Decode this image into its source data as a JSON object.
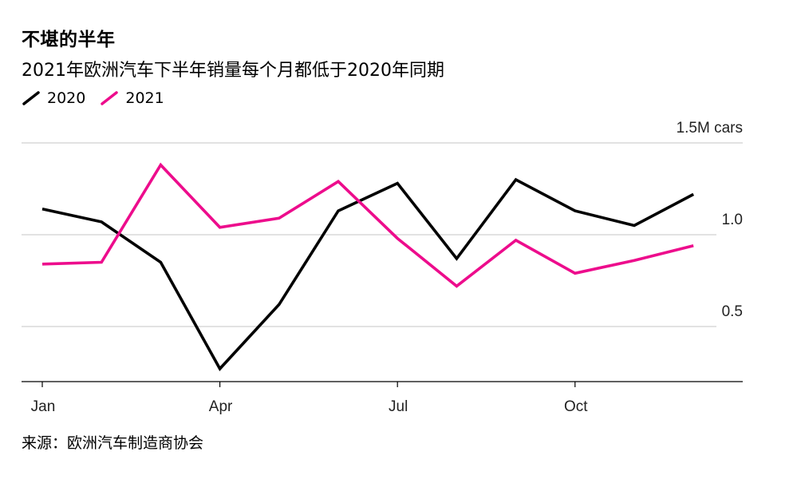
{
  "title": "不堪的半年",
  "subtitle": "2021年欧洲汽车下半年销量每个月都低于2020年同期",
  "source": "来源：欧洲汽车制造商协会",
  "chart_data": {
    "type": "line",
    "categories": [
      "Jan",
      "Feb",
      "Mar",
      "Apr",
      "May",
      "Jun",
      "Jul",
      "Aug",
      "Sep",
      "Oct",
      "Nov",
      "Dec"
    ],
    "x_tick_labels": [
      "Jan",
      "Apr",
      "Jul",
      "Oct"
    ],
    "y_unit_label": "1.5M cars",
    "y_ticks": [
      {
        "value": 1.0,
        "label": "1.0"
      },
      {
        "value": 0.5,
        "label": "0.5"
      }
    ],
    "ylim": [
      0.2,
      1.5
    ],
    "grid": true,
    "legend_position": "top-left",
    "series": [
      {
        "name": "2020",
        "color": "#000000",
        "values": [
          1.14,
          1.07,
          0.85,
          0.27,
          0.62,
          1.13,
          1.28,
          0.87,
          1.3,
          1.13,
          1.05,
          1.22
        ]
      },
      {
        "name": "2021",
        "color": "#ed0c8c",
        "values": [
          0.84,
          0.85,
          1.38,
          1.04,
          1.09,
          1.29,
          0.98,
          0.72,
          0.97,
          0.79,
          0.86,
          0.94
        ]
      }
    ]
  }
}
